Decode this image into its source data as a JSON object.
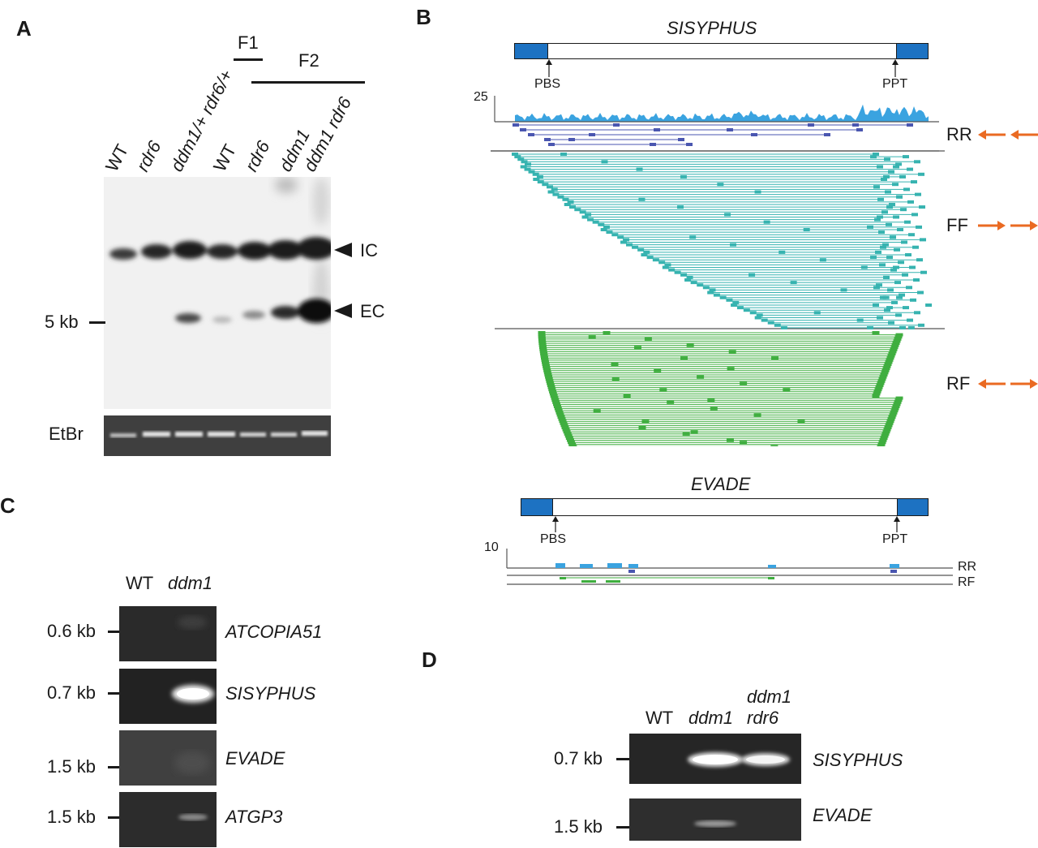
{
  "panels": {
    "a": "A",
    "b": "B",
    "c": "C",
    "d": "D"
  },
  "panel_a": {
    "generations": {
      "f1": "F1",
      "f2": "F2"
    },
    "lanes": [
      "WT",
      "rdr6",
      "ddm1/+ rdr6/+",
      "WT",
      "rdr6",
      "ddm1",
      "ddm1 rdr6"
    ],
    "band_labels": {
      "ic": "IC",
      "ec": "EC"
    },
    "marker": "5 kb",
    "loading_control": "EtBr"
  },
  "panel_b": {
    "elements": [
      {
        "name": "SISYPHUS",
        "pbs": "PBS",
        "ppt": "PPT",
        "coverage_max": "25",
        "groups": [
          {
            "label": "RR",
            "color": "#4a56b0"
          },
          {
            "label": "FF",
            "color": "#36b3b0"
          },
          {
            "label": "RF",
            "color": "#3fae3f"
          }
        ]
      },
      {
        "name": "EVADE",
        "pbs": "PBS",
        "ppt": "PPT",
        "coverage_max": "10",
        "groups": [
          {
            "label": "RR",
            "color": "#4a56b0"
          },
          {
            "label": "RF",
            "color": "#3fae3f"
          }
        ]
      }
    ],
    "coverage_color": "#3aa3e0",
    "ltr_color": "#1d72c2",
    "arrow_color": "#ea6a22"
  },
  "panel_c": {
    "lanes": [
      "WT",
      "ddm1"
    ],
    "rows": [
      {
        "size": "0.6 kb",
        "target": "ATCOPIA51"
      },
      {
        "size": "0.7 kb",
        "target": "SISYPHUS"
      },
      {
        "size": "1.5 kb",
        "target": "EVADE"
      },
      {
        "size": "1.5 kb",
        "target": "ATGP3"
      }
    ]
  },
  "panel_d": {
    "lanes": [
      "WT",
      "ddm1",
      "ddm1",
      "rdr6"
    ],
    "rows": [
      {
        "size": "0.7 kb",
        "target": "SISYPHUS"
      },
      {
        "size": "1.5 kb",
        "target": "EVADE"
      }
    ]
  }
}
